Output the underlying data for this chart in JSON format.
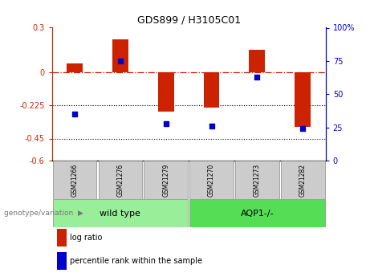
{
  "title": "GDS899 / H3105C01",
  "samples": [
    "GSM21266",
    "GSM21276",
    "GSM21279",
    "GSM21270",
    "GSM21273",
    "GSM21282"
  ],
  "log_ratio": [
    0.06,
    0.22,
    -0.27,
    -0.24,
    0.15,
    -0.37
  ],
  "percentile_rank": [
    35,
    75,
    28,
    26,
    63,
    24
  ],
  "ylim_left": [
    -0.6,
    0.3
  ],
  "ylim_right": [
    0,
    100
  ],
  "yticks_left": [
    0.3,
    0,
    -0.225,
    -0.45,
    -0.6
  ],
  "ytick_labels_left": [
    "0.3",
    "0",
    "-0.225",
    "-0.45",
    "-0.6"
  ],
  "yticks_right": [
    100,
    75,
    50,
    25,
    0
  ],
  "ytick_labels_right": [
    "100%",
    "75",
    "50",
    "25",
    "0"
  ],
  "hlines": [
    -0.225,
    -0.45
  ],
  "bar_color": "#cc2200",
  "dot_color": "#0000cc",
  "zero_line_color": "#cc2200",
  "groups": [
    {
      "label": "wild type",
      "indices": [
        0,
        1,
        2
      ],
      "color": "#99ee99"
    },
    {
      "label": "AQP1-/-",
      "indices": [
        3,
        4,
        5
      ],
      "color": "#55dd55"
    }
  ],
  "genotype_label": "genotype/variation",
  "legend_items": [
    {
      "color": "#cc2200",
      "label": "log ratio"
    },
    {
      "color": "#0000cc",
      "label": "percentile rank within the sample"
    }
  ],
  "bar_width": 0.35,
  "background_color": "#ffffff",
  "sample_box_color": "#cccccc"
}
